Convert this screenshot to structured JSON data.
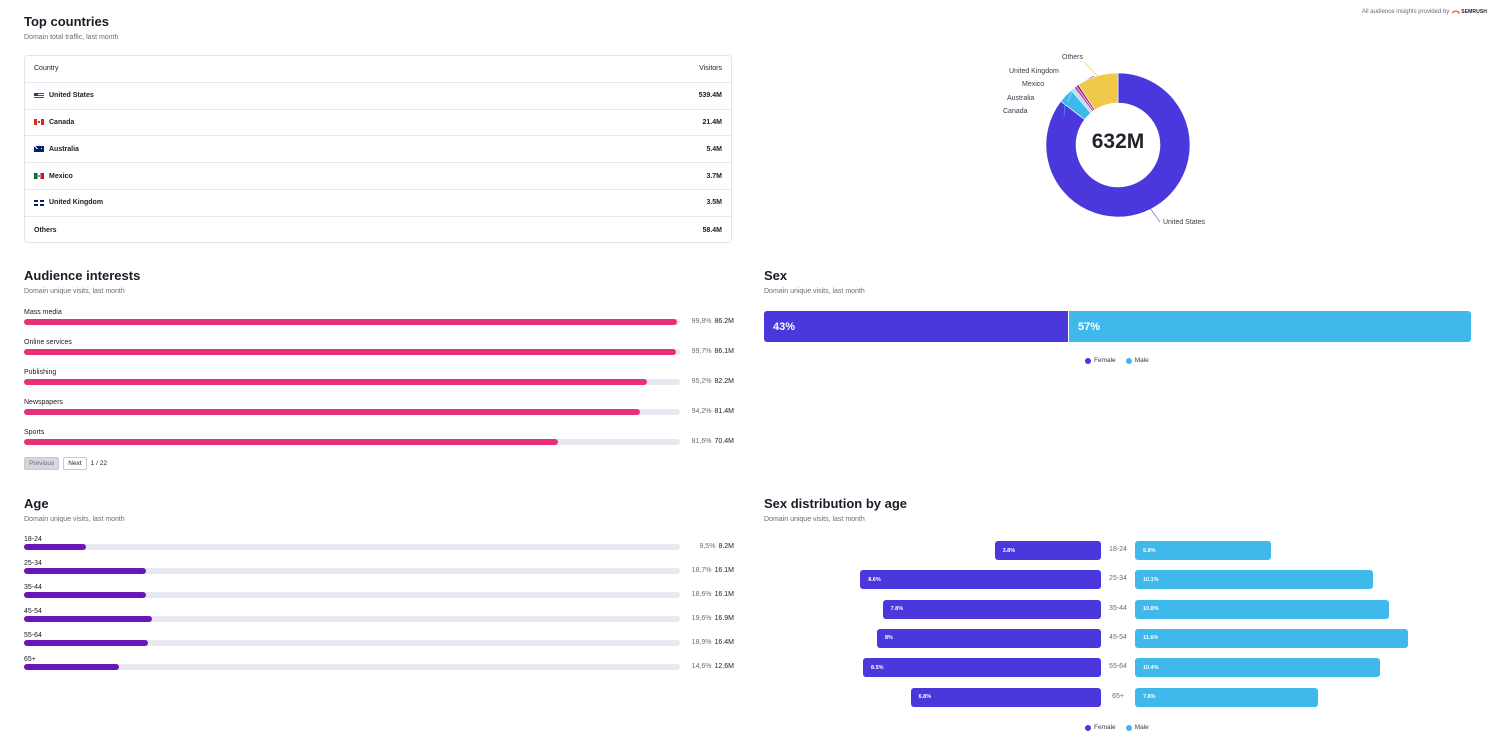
{
  "provider": {
    "text": "All audience insights provided by",
    "brand": "SEMRUSH"
  },
  "top_countries": {
    "title": "Top countries",
    "subtitle": "Domain total traffic, last month",
    "col_country": "Country",
    "col_visitors": "Visitors",
    "rows": [
      {
        "name": "United States",
        "visitors": "539.4M",
        "flag": "us-flag-icon"
      },
      {
        "name": "Canada",
        "visitors": "21.4M",
        "flag": "ca-flag-icon"
      },
      {
        "name": "Australia",
        "visitors": "5.4M",
        "flag": "au-flag-icon"
      },
      {
        "name": "Mexico",
        "visitors": "3.7M",
        "flag": "mx-flag-icon"
      },
      {
        "name": "United Kingdom",
        "visitors": "3.5M",
        "flag": "gb-flag-icon"
      },
      {
        "name": "Others",
        "visitors": "58.4M",
        "flag": ""
      }
    ]
  },
  "donut": {
    "total": "632M",
    "slices": [
      {
        "name": "United States",
        "value": 539.4,
        "color": "#4b38dc"
      },
      {
        "name": "Canada",
        "value": 21.4,
        "color": "#3fb8ec"
      },
      {
        "name": "Australia",
        "value": 5.4,
        "color": "#a4e3f5"
      },
      {
        "name": "Mexico",
        "value": 3.7,
        "color": "#e8307a"
      },
      {
        "name": "United Kingdom",
        "value": 3.5,
        "color": "#7b1fa2"
      },
      {
        "name": "Others",
        "value": 58.4,
        "color": "#f0c94b"
      }
    ]
  },
  "interests": {
    "title": "Audience interests",
    "subtitle": "Domain unique visits, last month",
    "items": [
      {
        "label": "Mass media",
        "pct": "99,8%",
        "visits": "86.2M",
        "fraction": 0.998
      },
      {
        "label": "Online services",
        "pct": "99,7%",
        "visits": "86.1M",
        "fraction": 0.997
      },
      {
        "label": "Publishing",
        "pct": "95,2%",
        "visits": "82.2M",
        "fraction": 0.952
      },
      {
        "label": "Newspapers",
        "pct": "94,2%",
        "visits": "81.4M",
        "fraction": 0.942
      },
      {
        "label": "Sports",
        "pct": "81,6%",
        "visits": "70.4M",
        "fraction": 0.816
      }
    ],
    "pager": {
      "previous": "Previous",
      "next": "Next",
      "page": "1 / 22"
    },
    "color": "#e8307a"
  },
  "sex": {
    "title": "Sex",
    "subtitle": "Domain unique visits, last month",
    "female_pct": "43%",
    "male_pct": "57%",
    "female_fraction": 0.43,
    "legend_female": "Female",
    "legend_male": "Male",
    "female_color": "#4b38dc",
    "male_color": "#3fb8ec"
  },
  "age": {
    "title": "Age",
    "subtitle": "Domain unique visits, last month",
    "items": [
      {
        "label": "18-24",
        "pct": "9,5%",
        "visits": "8.2M",
        "fraction": 0.095
      },
      {
        "label": "25-34",
        "pct": "18,7%",
        "visits": "16.1M",
        "fraction": 0.187
      },
      {
        "label": "35-44",
        "pct": "18,6%",
        "visits": "16.1M",
        "fraction": 0.186
      },
      {
        "label": "45-54",
        "pct": "19,6%",
        "visits": "16.9M",
        "fraction": 0.196
      },
      {
        "label": "55-64",
        "pct": "18,9%",
        "visits": "16.4M",
        "fraction": 0.189
      },
      {
        "label": "65+",
        "pct": "14,6%",
        "visits": "12.6M",
        "fraction": 0.146
      }
    ],
    "color": "#6a15b5"
  },
  "sex_by_age": {
    "title": "Sex distribution by age",
    "subtitle": "Domain unique visits, last month",
    "rows": [
      {
        "age": "18-24",
        "female": "3.8%",
        "male": "5.8%",
        "female_value": 3.8,
        "male_value": 5.8
      },
      {
        "age": "25-34",
        "female": "8.6%",
        "male": "10.1%",
        "female_value": 8.6,
        "male_value": 10.1
      },
      {
        "age": "35-44",
        "female": "7.8%",
        "male": "10.8%",
        "female_value": 7.8,
        "male_value": 10.8
      },
      {
        "age": "45-54",
        "female": "8%",
        "male": "11.6%",
        "female_value": 8.0,
        "male_value": 11.6
      },
      {
        "age": "55-64",
        "female": "8.5%",
        "male": "10.4%",
        "female_value": 8.5,
        "male_value": 10.4
      },
      {
        "age": "65+",
        "female": "6.8%",
        "male": "7.8%",
        "female_value": 6.8,
        "male_value": 7.8
      }
    ],
    "legend_female": "Female",
    "legend_male": "Male"
  }
}
